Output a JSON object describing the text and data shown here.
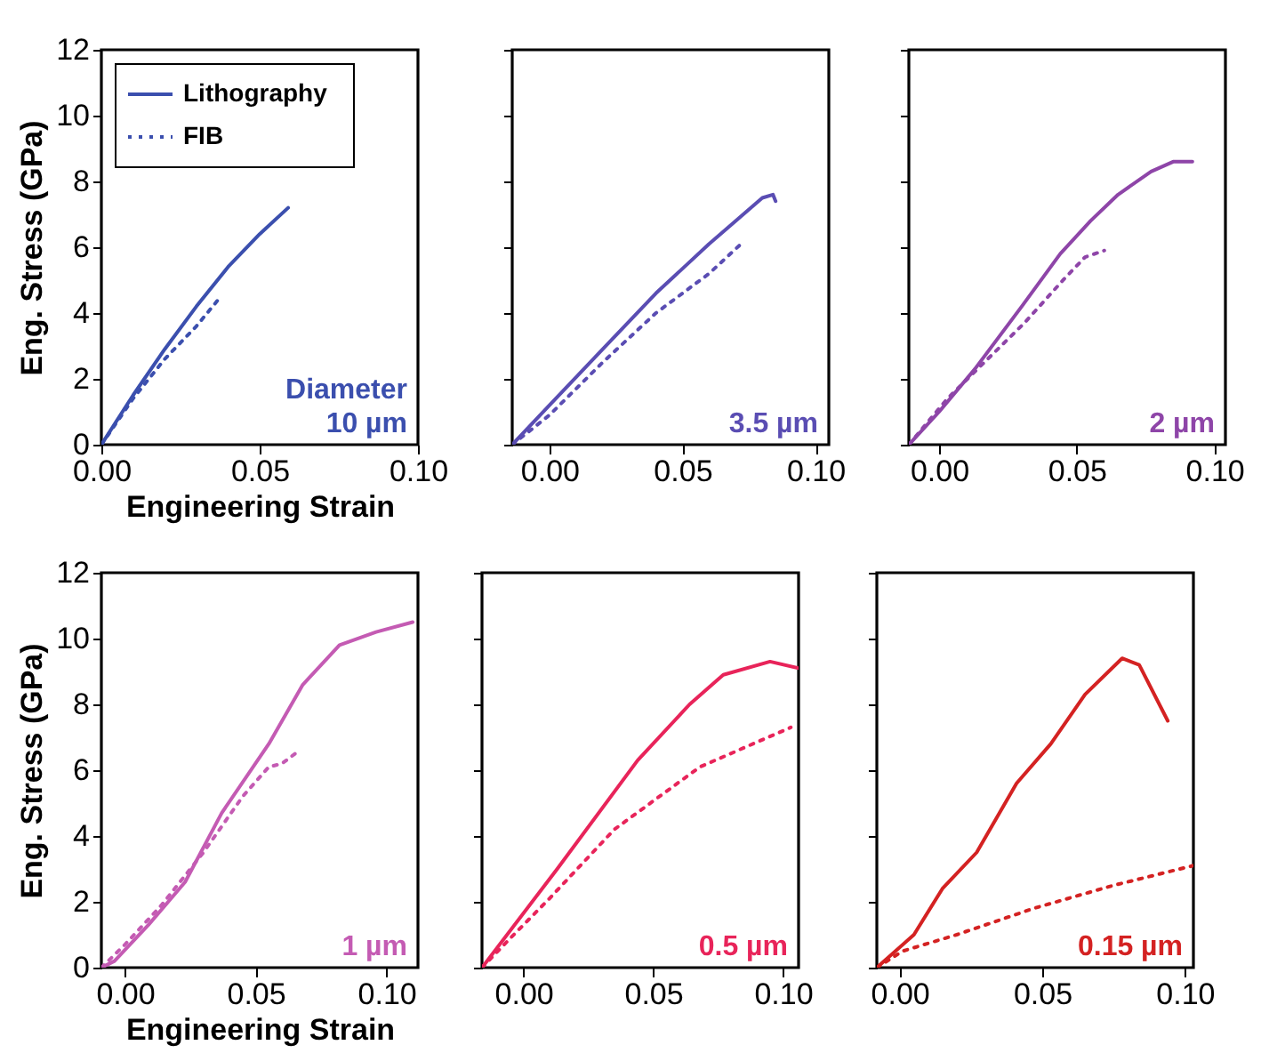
{
  "chart_data": [
    {
      "type": "line",
      "xlabel": "Engineering Strain",
      "ylabel": "Eng. Stress (GPa)",
      "xlim": [
        0,
        0.1
      ],
      "xticks": [
        {
          "value": 0,
          "label": "0.00"
        },
        {
          "value": 0.05,
          "label": "0.05"
        },
        {
          "value": 0.1,
          "label": "0.10"
        }
      ],
      "ylim": [
        0,
        12
      ],
      "yticks": [
        0,
        2,
        4,
        6,
        8,
        10,
        12
      ],
      "legend": "top left",
      "annotations": [
        "Diameter",
        "10 µm"
      ],
      "series": [
        {
          "name": "Lithography",
          "color": "#3b4fae",
          "line_style": "solid",
          "x": [
            0,
            0.01,
            0.02,
            0.03,
            0.04,
            0.05,
            0.059
          ],
          "values": [
            0,
            1.5,
            2.9,
            4.2,
            5.4,
            6.4,
            7.2
          ]
        },
        {
          "name": "FIB",
          "color": "#3b4fae",
          "line_style": "dotted",
          "x": [
            0,
            0.01,
            0.02,
            0.03,
            0.0377
          ],
          "values": [
            0,
            1.4,
            2.6,
            3.6,
            4.5
          ]
        }
      ]
    },
    {
      "type": "line",
      "xlim": [
        -0.014,
        0.105
      ],
      "xticks": [
        {
          "value": 0,
          "label": "0.00"
        },
        {
          "value": 0.05,
          "label": "0.05"
        },
        {
          "value": 0.1,
          "label": "0.10"
        }
      ],
      "ylim": [
        0,
        12
      ],
      "yticks": [
        0,
        2,
        4,
        6,
        8,
        10,
        12
      ],
      "tick_labels": "x",
      "annotations": [
        "3.5 µm"
      ],
      "series": [
        {
          "color": "#5a4db3",
          "line_style": "solid",
          "x": [
            -0.014,
            0,
            0.02,
            0.04,
            0.06,
            0.08,
            0.084,
            0.085
          ],
          "values": [
            0,
            1.2,
            2.9,
            4.6,
            6.1,
            7.5,
            7.6,
            7.4
          ]
        },
        {
          "color": "#5a4db3",
          "line_style": "dotted",
          "x": [
            -0.014,
            0,
            0.02,
            0.04,
            0.06,
            0.072
          ],
          "values": [
            0,
            0.9,
            2.5,
            4.0,
            5.2,
            6.1
          ]
        }
      ]
    },
    {
      "type": "line",
      "xlim": [
        -0.011,
        0.104
      ],
      "xticks": [
        {
          "value": 0,
          "label": "0.00"
        },
        {
          "value": 0.05,
          "label": "0.05"
        },
        {
          "value": 0.1,
          "label": "0.10"
        }
      ],
      "ylim": [
        0,
        12
      ],
      "yticks": [
        0,
        2,
        4,
        6,
        8,
        10,
        12
      ],
      "tick_labels": "x",
      "annotations": [
        "2 µm"
      ],
      "series": [
        {
          "color": "#8e45a8",
          "line_style": "solid",
          "x": [
            -0.011,
            0,
            0.013,
            0.03,
            0.044,
            0.055,
            0.065,
            0.077,
            0.085,
            0.092
          ],
          "values": [
            0,
            1.0,
            2.3,
            4.2,
            5.8,
            6.8,
            7.6,
            8.3,
            8.6,
            8.6
          ]
        },
        {
          "color": "#8e45a8",
          "line_style": "dotted",
          "x": [
            -0.011,
            0.003,
            0.031,
            0.045,
            0.053,
            0.06
          ],
          "values": [
            0,
            1.4,
            3.7,
            5.0,
            5.7,
            5.9
          ]
        }
      ]
    },
    {
      "type": "line",
      "xlabel": "Engineering Strain",
      "ylabel": "Eng. Stress (GPa)",
      "xlim": [
        -0.009,
        0.112
      ],
      "xticks": [
        {
          "value": 0,
          "label": "0.00"
        },
        {
          "value": 0.05,
          "label": "0.05"
        },
        {
          "value": 0.1,
          "label": "0.10"
        }
      ],
      "ylim": [
        0,
        12
      ],
      "yticks": [
        0,
        2,
        4,
        6,
        8,
        10,
        12
      ],
      "annotations": [
        "1 µm"
      ],
      "series": [
        {
          "color": "#c45bb3",
          "line_style": "solid",
          "x": [
            -0.009,
            -0.004,
            0.009,
            0.023,
            0.037,
            0.055,
            0.068,
            0.082,
            0.096,
            0.11
          ],
          "values": [
            0,
            0.2,
            1.3,
            2.6,
            4.7,
            6.8,
            8.6,
            9.8,
            10.2,
            10.5
          ]
        },
        {
          "color": "#c45bb3",
          "line_style": "dotted",
          "x": [
            -0.009,
            0,
            0.014,
            0.03,
            0.045,
            0.055,
            0.06,
            0.065
          ],
          "values": [
            0,
            0.7,
            1.9,
            3.5,
            5.2,
            6.1,
            6.2,
            6.5
          ]
        }
      ]
    },
    {
      "type": "line",
      "xlim": [
        -0.016,
        0.106
      ],
      "xticks": [
        {
          "value": 0,
          "label": "0.00"
        },
        {
          "value": 0.05,
          "label": "0.05"
        },
        {
          "value": 0.1,
          "label": "0.10"
        }
      ],
      "ylim": [
        0,
        12
      ],
      "yticks": [
        0,
        2,
        4,
        6,
        8,
        10,
        12
      ],
      "tick_labels": "x",
      "annotations": [
        "0.5 µm"
      ],
      "series": [
        {
          "color": "#e8245a",
          "line_style": "solid",
          "x": [
            -0.016,
            0.013,
            0.044,
            0.064,
            0.077,
            0.095,
            0.106
          ],
          "values": [
            0,
            3.0,
            6.3,
            8.0,
            8.9,
            9.3,
            9.1
          ]
        },
        {
          "color": "#e8245a",
          "line_style": "dotted",
          "x": [
            -0.016,
            -0.005,
            0.01,
            0.035,
            0.068,
            0.103
          ],
          "values": [
            0,
            0.9,
            2.1,
            4.2,
            6.1,
            7.3
          ]
        }
      ]
    },
    {
      "type": "line",
      "xlim": [
        -0.008,
        0.103
      ],
      "xticks": [
        {
          "value": 0,
          "label": "0.00"
        },
        {
          "value": 0.05,
          "label": "0.05"
        },
        {
          "value": 0.1,
          "label": "0.10"
        }
      ],
      "ylim": [
        0,
        12
      ],
      "yticks": [
        0,
        2,
        4,
        6,
        8,
        10,
        12
      ],
      "tick_labels": "x",
      "annotations": [
        "0.15 µm"
      ],
      "series": [
        {
          "color": "#d42222",
          "line_style": "solid",
          "x": [
            -0.008,
            0.005,
            0.015,
            0.027,
            0.041,
            0.053,
            0.065,
            0.078,
            0.084,
            0.094
          ],
          "values": [
            0,
            1.0,
            2.4,
            3.5,
            5.6,
            6.8,
            8.3,
            9.4,
            9.2,
            7.5
          ]
        },
        {
          "color": "#d42222",
          "line_style": "dotted",
          "x": [
            -0.008,
            0.001,
            0.02,
            0.047,
            0.075,
            0.103
          ],
          "values": [
            0,
            0.5,
            1.0,
            1.8,
            2.5,
            3.1
          ]
        }
      ]
    }
  ]
}
